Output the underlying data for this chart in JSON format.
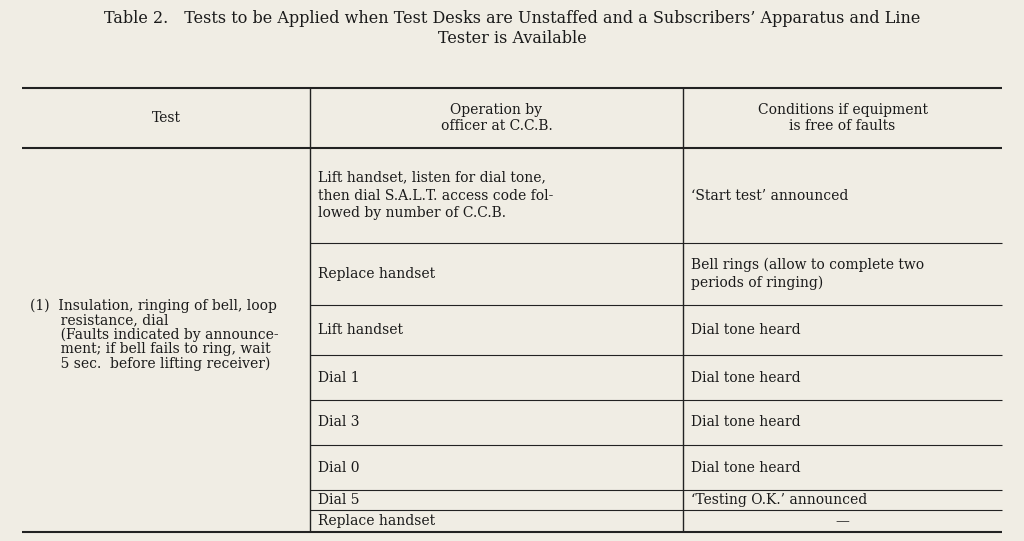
{
  "title_line1": "Table 2. Tests to be Applied when Test Desks are Unstaffed and a Subscribers’ Apparatus and Line",
  "title_line2": "Tester is Available",
  "bg_color": "#f0ede4",
  "text_color": "#1a1a1a",
  "col_headers": [
    "Test",
    "Operation by\nofficer at C.C.B.",
    "Conditions if equipment\nis free of faults"
  ],
  "test_col_text_lines": [
    "(1)  Insulation, ringing of bell, loop",
    "       resistance, dial",
    "       (Faults indicated by announce-",
    "       ment; if bell fails to ring, wait",
    "       5 sec.  before lifting receiver)"
  ],
  "rows": [
    {
      "op": "Lift handset, listen for dial tone,\nthen dial S.A.L.T. access code fol-\nlowed by number of C.C.B.",
      "cond": "‘Start test’ announced",
      "tall": true
    },
    {
      "op": "Replace handset",
      "cond": "Bell rings (allow to complete two\nperiods of ringing)",
      "tall": false
    },
    {
      "op": "Lift handset",
      "cond": "Dial tone heard",
      "tall": false
    },
    {
      "op": "Dial 1",
      "cond": "Dial tone heard",
      "tall": false
    },
    {
      "op": "Dial 3",
      "cond": "Dial tone heard",
      "tall": false
    },
    {
      "op": "Dial 0",
      "cond": "Dial tone heard",
      "tall": false
    },
    {
      "op": "Dial 5",
      "cond": "‘Testing O.K.’ announced",
      "tall": false
    },
    {
      "op": "Replace handset",
      "cond": "—",
      "tall": false
    }
  ],
  "font_family": "serif",
  "title_fontsize": 10.0,
  "header_fontsize": 10.0,
  "body_fontsize": 10.0
}
